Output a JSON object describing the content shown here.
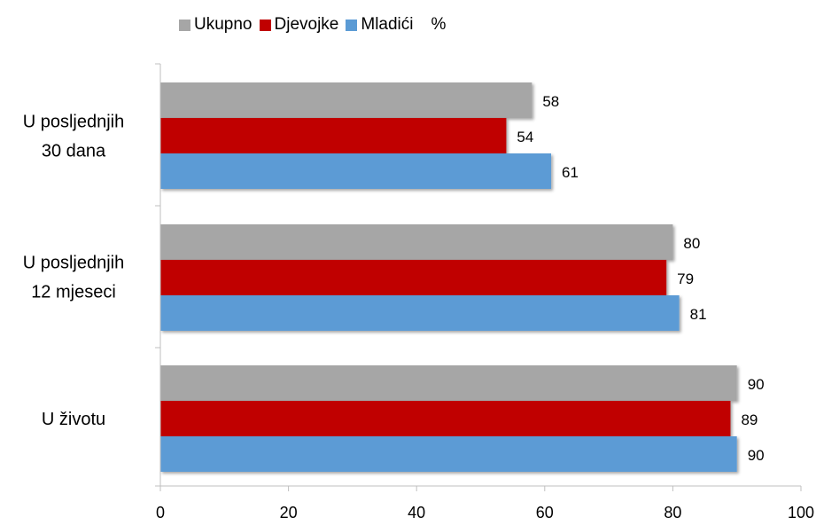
{
  "chart_data": {
    "type": "bar",
    "orientation": "horizontal",
    "unit_label": "%",
    "categories": [
      "U posljednjih 30 dana",
      "U posljednjih 12 mjeseci",
      "U životu"
    ],
    "category_lines": [
      [
        "U posljednjih",
        "30 dana"
      ],
      [
        "U posljednjih",
        "12 mjeseci"
      ],
      [
        "U životu"
      ]
    ],
    "series": [
      {
        "name": "Ukupno",
        "values": [
          58,
          80,
          90
        ],
        "color": "#a6a6a6"
      },
      {
        "name": "Djevojke",
        "values": [
          54,
          79,
          89
        ],
        "color": "#c00000"
      },
      {
        "name": "Mladići",
        "values": [
          61,
          81,
          90
        ],
        "color": "#5b9bd5"
      }
    ],
    "xlim": [
      0,
      100
    ],
    "xticks": [
      0,
      20,
      40,
      60,
      80,
      100
    ],
    "legend_position": "top",
    "grid": false
  }
}
